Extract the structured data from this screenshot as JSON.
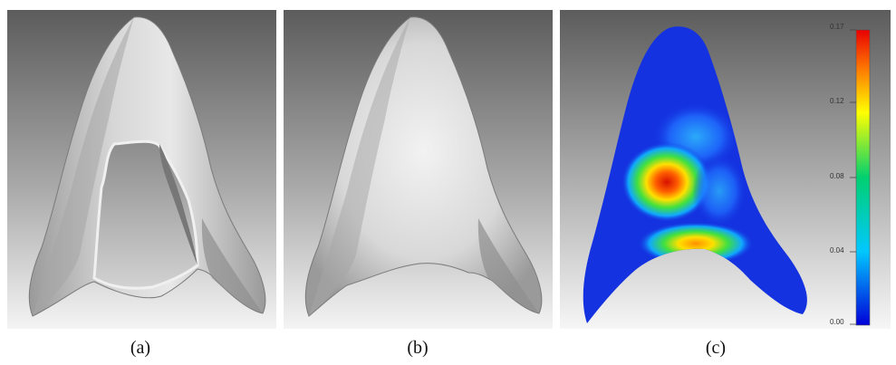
{
  "captions": {
    "a": "(a)",
    "b": "(b)",
    "c": "(c)"
  },
  "colorbar": {
    "ticks": [
      "0.17",
      "0.12",
      "0.08",
      "0.04",
      "0.00"
    ],
    "min": 0.0,
    "max": 0.17,
    "colors": [
      "#0000d8",
      "#00c8ff",
      "#00d070",
      "#ffff00",
      "#ff8000",
      "#e80000"
    ]
  },
  "colors": {
    "background_top": "#5e5e5e",
    "background_bottom": "#f2f2f2",
    "mesh_base": "#1432e0",
    "hotspot_core": "#e02000"
  }
}
